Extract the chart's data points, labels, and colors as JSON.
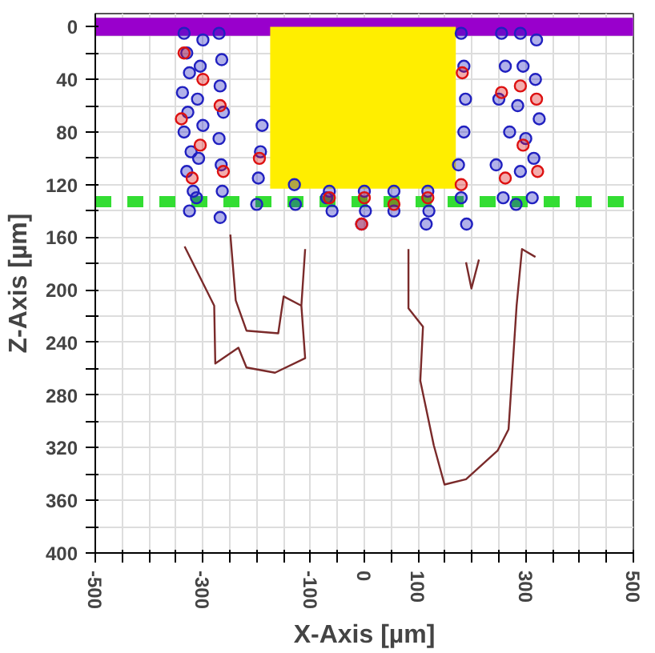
{
  "chart_data": {
    "type": "scatter",
    "xlabel": "X-Axis [µm]",
    "ylabel": "Z-Axis [µm]",
    "xlim": [
      -500,
      500
    ],
    "ylim": [
      400,
      -10
    ],
    "xticks": [
      -500,
      {
        "value": -450,
        "label": null
      },
      {
        "value": -400,
        "label": null
      },
      {
        "value": -350,
        "label": null
      },
      -300,
      {
        "value": -250,
        "label": null
      },
      {
        "value": -200,
        "label": null
      },
      {
        "value": -150,
        "label": null
      },
      -100,
      {
        "value": -50,
        "label": null
      },
      0,
      {
        "value": 50,
        "label": null
      },
      100,
      {
        "value": 150,
        "label": null
      },
      {
        "value": 200,
        "label": null
      },
      {
        "value": 250,
        "label": null
      },
      300,
      {
        "value": 350,
        "label": null
      },
      {
        "value": 400,
        "label": null
      },
      {
        "value": 450,
        "label": null
      },
      500
    ],
    "yticks": [
      0,
      {
        "value": 20,
        "label": null
      },
      40,
      {
        "value": 60,
        "label": null
      },
      80,
      {
        "value": 100,
        "label": null
      },
      120,
      {
        "value": 140,
        "label": null
      },
      160,
      {
        "value": 180,
        "label": null
      },
      200,
      {
        "value": 220,
        "label": null
      },
      240,
      {
        "value": 260,
        "label": null
      },
      280,
      {
        "value": 300,
        "label": null
      },
      320,
      {
        "value": 340,
        "label": null
      },
      360,
      {
        "value": 380,
        "label": null
      },
      400
    ],
    "grid": true,
    "bands": [
      {
        "axis": "y",
        "from": -7,
        "to": 7,
        "color": "#9900cc"
      }
    ],
    "ref_lines": [
      {
        "axis": "y",
        "value": 133,
        "color": "#33dd33",
        "line_style": "dashed"
      }
    ],
    "series": [
      {
        "type": "area",
        "color": "#ffee00",
        "x": [
          -175,
          170
        ],
        "values": [
          123,
          123
        ]
      },
      {
        "type": "line",
        "color": "#7a2a2a",
        "x": [
          -110,
          -117,
          -110,
          -166,
          -219,
          -234,
          -277,
          -279,
          -334
        ],
        "values": [
          169,
          212,
          252,
          263,
          259,
          244,
          256,
          212,
          167
        ]
      },
      {
        "type": "line",
        "color": "#7a2a2a",
        "x": [
          -249,
          -239,
          -219,
          -160,
          -150,
          -117
        ],
        "values": [
          158,
          208,
          231,
          233,
          205,
          212
        ]
      },
      {
        "type": "line",
        "color": "#7a2a2a",
        "x": [
          82,
          82,
          109,
          104,
          129,
          149,
          189,
          248,
          268,
          283,
          293,
          318
        ],
        "values": [
          169,
          214,
          228,
          269,
          318,
          348,
          344,
          322,
          306,
          212,
          169,
          175
        ]
      },
      {
        "type": "line",
        "color": "#7a2a2a",
        "x": [
          189,
          199,
          213
        ],
        "values": [
          179,
          199,
          177
        ]
      },
      {
        "marker": "circle",
        "color": "#2020c0",
        "x": [
          -335,
          -330,
          -325,
          -338,
          -328,
          -335,
          -322,
          -330,
          -318,
          -325,
          -300,
          -305,
          -310,
          -300,
          -308,
          -312,
          -270,
          -265,
          -268,
          -262,
          -270,
          -266,
          -264,
          -268,
          -190,
          -193,
          -197,
          -200,
          -130,
          -128,
          -65,
          -60,
          -70,
          0,
          2,
          -5,
          55,
          55,
          118,
          120,
          115,
          180,
          185,
          188,
          185,
          175,
          180,
          190,
          255,
          262,
          250,
          270,
          245,
          258,
          290,
          295,
          285,
          300,
          290,
          282,
          320,
          318,
          325,
          315,
          312
        ],
        "values": [
          5,
          20,
          35,
          50,
          65,
          80,
          95,
          110,
          125,
          140,
          10,
          30,
          55,
          75,
          100,
          130,
          5,
          25,
          45,
          65,
          85,
          105,
          125,
          145,
          75,
          95,
          115,
          135,
          120,
          135,
          125,
          140,
          130,
          125,
          140,
          150,
          125,
          140,
          125,
          140,
          150,
          5,
          30,
          55,
          80,
          105,
          130,
          150,
          5,
          30,
          55,
          80,
          105,
          130,
          5,
          30,
          60,
          85,
          110,
          135,
          10,
          40,
          70,
          100,
          130
        ]
      },
      {
        "marker": "circle",
        "color": "#dd1111",
        "x": [
          -335,
          -340,
          -320,
          -300,
          -305,
          -268,
          -262,
          -195,
          -65,
          0,
          -5,
          55,
          118,
          182,
          180,
          255,
          262,
          290,
          295,
          320,
          322
        ],
        "values": [
          20,
          70,
          115,
          40,
          90,
          60,
          110,
          100,
          130,
          130,
          150,
          135,
          130,
          35,
          120,
          50,
          115,
          45,
          90,
          55,
          110
        ]
      }
    ]
  }
}
